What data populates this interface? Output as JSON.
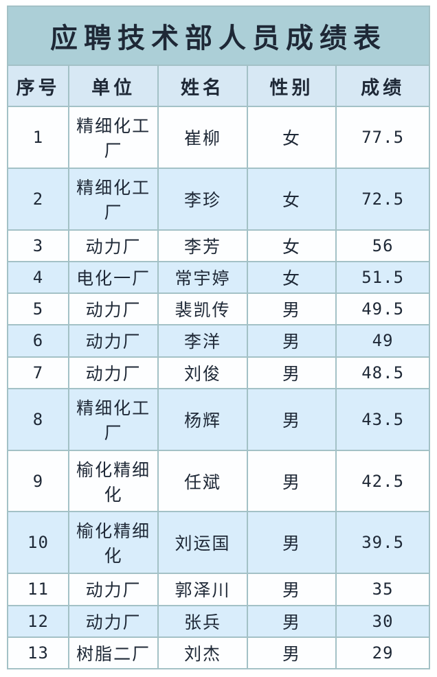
{
  "title": "应聘技术部人员成绩表",
  "columns": [
    "序号",
    "单位",
    "姓名",
    "性别",
    "成绩"
  ],
  "rows": [
    {
      "no": "1",
      "unit": "精细化工厂",
      "name": "崔柳",
      "gender": "女",
      "score": "77.5"
    },
    {
      "no": "2",
      "unit": "精细化工厂",
      "name": "李珍",
      "gender": "女",
      "score": "72.5"
    },
    {
      "no": "3",
      "unit": "动力厂",
      "name": "李芳",
      "gender": "女",
      "score": "56"
    },
    {
      "no": "4",
      "unit": "电化一厂",
      "name": "常宇婷",
      "gender": "女",
      "score": "51.5"
    },
    {
      "no": "5",
      "unit": "动力厂",
      "name": "裴凯传",
      "gender": "男",
      "score": "49.5"
    },
    {
      "no": "6",
      "unit": "动力厂",
      "name": "李洋",
      "gender": "男",
      "score": "49"
    },
    {
      "no": "7",
      "unit": "动力厂",
      "name": "刘俊",
      "gender": "男",
      "score": "48.5"
    },
    {
      "no": "8",
      "unit": "精细化工厂",
      "name": "杨辉",
      "gender": "男",
      "score": "43.5"
    },
    {
      "no": "9",
      "unit": "榆化精细化",
      "name": "任斌",
      "gender": "男",
      "score": "42.5"
    },
    {
      "no": "10",
      "unit": "榆化精细化",
      "name": "刘运国",
      "gender": "男",
      "score": "39.5"
    },
    {
      "no": "11",
      "unit": "动力厂",
      "name": "郭泽川",
      "gender": "男",
      "score": "35"
    },
    {
      "no": "12",
      "unit": "动力厂",
      "name": "张兵",
      "gender": "男",
      "score": "30"
    },
    {
      "no": "13",
      "unit": "树脂二厂",
      "name": "刘杰",
      "gender": "男",
      "score": "29"
    }
  ],
  "colors": {
    "title_bg": "#accfd7",
    "title_text": "#2ea0d4",
    "header_bg": "#d7e8f4",
    "row_bg": "#fdfeff",
    "row_alt_bg": "#d9edfb",
    "grid": "#a3c1c6",
    "cell_text": "#1e2836"
  }
}
